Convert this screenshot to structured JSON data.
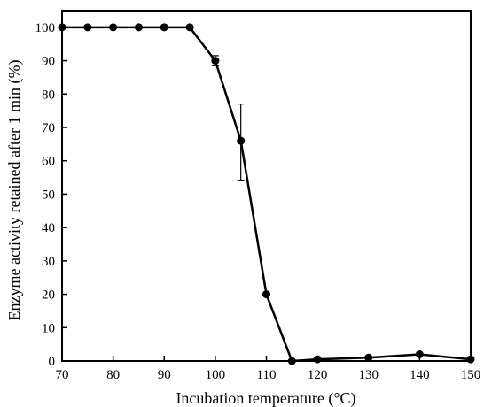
{
  "chart_data": {
    "type": "line",
    "xlabel": "Incubation temperature (°C)",
    "ylabel": "Enzyme activity retained after 1 min (%)",
    "xlim": [
      70,
      150
    ],
    "ylim": [
      0,
      105
    ],
    "x_ticks": [
      70,
      80,
      90,
      100,
      110,
      120,
      130,
      140,
      150
    ],
    "y_ticks": [
      0,
      10,
      20,
      30,
      40,
      50,
      60,
      70,
      80,
      90,
      100
    ],
    "grid": false,
    "x_tick_labels": [
      "70",
      "80",
      "90",
      "100",
      "110",
      "120",
      "130",
      "140",
      "150"
    ],
    "y_tick_labels": [
      "0",
      "10",
      "20",
      "30",
      "40",
      "50",
      "60",
      "70",
      "80",
      "90",
      "100"
    ],
    "series": [
      {
        "points": [
          {
            "x": 70,
            "y": 100
          },
          {
            "x": 75,
            "y": 100
          },
          {
            "x": 80,
            "y": 100
          },
          {
            "x": 85,
            "y": 100
          },
          {
            "x": 90,
            "y": 100
          },
          {
            "x": 95,
            "y": 100
          },
          {
            "x": 100,
            "y": 90,
            "err_low": 88.5,
            "err_high": 91.5
          },
          {
            "x": 105,
            "y": 66,
            "err_low": 54,
            "err_high": 77
          },
          {
            "x": 110,
            "y": 20
          },
          {
            "x": 115,
            "y": 0
          },
          {
            "x": 120,
            "y": 0.5
          },
          {
            "x": 130,
            "y": 1
          },
          {
            "x": 140,
            "y": 2
          },
          {
            "x": 150,
            "y": 0.5
          }
        ]
      }
    ]
  }
}
